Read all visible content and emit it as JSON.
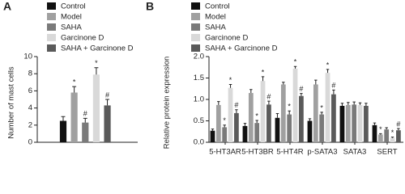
{
  "chart_data": [
    {
      "type": "bar",
      "panel_label": "A",
      "y_label": "Number of mast cells",
      "categories": [
        null
      ],
      "series": [
        {
          "name": "Control",
          "color": "#111111",
          "values": [
            2.5
          ],
          "errors": [
            0.5
          ],
          "markers": [
            null
          ]
        },
        {
          "name": "Model",
          "color": "#a0a0a0",
          "values": [
            5.8
          ],
          "errors": [
            0.7
          ],
          "markers": [
            "*"
          ]
        },
        {
          "name": "SAHA",
          "color": "#7a7a7a",
          "values": [
            2.3
          ],
          "errors": [
            0.5
          ],
          "markers": [
            "#"
          ]
        },
        {
          "name": "Garcinone D",
          "color": "#d9d9d9",
          "values": [
            7.9
          ],
          "errors": [
            0.8
          ],
          "markers": [
            "*"
          ]
        },
        {
          "name": "SAHA + Garcinone D",
          "color": "#5a5a5a",
          "values": [
            4.3
          ],
          "errors": [
            0.7
          ],
          "markers": [
            "#"
          ]
        }
      ],
      "ylim": [
        0,
        10
      ],
      "yticks": [
        0,
        2,
        4,
        6,
        8,
        10
      ]
    },
    {
      "type": "bar",
      "panel_label": "B",
      "y_label": "Relative protein expression",
      "categories": [
        "5-HT3AR",
        "5-HT3BR",
        "5-HT4R",
        "p-SATA3",
        "SATA3",
        "SERT"
      ],
      "series": [
        {
          "name": "Control",
          "color": "#111111",
          "values": [
            0.27,
            0.38,
            0.57,
            0.5,
            0.85,
            0.4
          ],
          "errors": [
            0.04,
            0.06,
            0.1,
            0.05,
            0.06,
            0.05
          ],
          "markers": [
            null,
            null,
            null,
            null,
            null,
            null
          ]
        },
        {
          "name": "Model",
          "color": "#a0a0a0",
          "values": [
            0.87,
            1.15,
            1.35,
            1.35,
            0.87,
            0.18
          ],
          "errors": [
            0.08,
            0.08,
            0.05,
            0.1,
            0.06,
            0.02
          ],
          "markers": [
            null,
            null,
            null,
            null,
            null,
            "*"
          ]
        },
        {
          "name": "SAHA",
          "color": "#7a7a7a",
          "values": [
            0.35,
            0.45,
            0.65,
            0.65,
            0.88,
            0.3
          ],
          "errors": [
            0.05,
            0.06,
            0.08,
            0.05,
            0.06,
            0.04
          ],
          "markers": [
            "*",
            "*",
            "*",
            "*",
            null,
            null
          ]
        },
        {
          "name": "Garcinone D",
          "color": "#d9d9d9",
          "values": [
            1.27,
            1.43,
            1.72,
            1.62,
            0.87,
            0.1
          ],
          "errors": [
            0.08,
            0.1,
            0.05,
            0.08,
            0.05,
            0.02
          ],
          "markers": [
            "*",
            "*",
            "*",
            "*",
            null,
            "*"
          ]
        },
        {
          "name": "SAHA + Garcinone D",
          "color": "#5a5a5a",
          "values": [
            0.68,
            0.88,
            1.08,
            1.12,
            0.85,
            0.28
          ],
          "errors": [
            0.08,
            0.08,
            0.06,
            0.1,
            0.06,
            0.04
          ],
          "markers": [
            "#",
            "#",
            "#",
            "#",
            null,
            "#"
          ]
        }
      ],
      "ylim": [
        0,
        2
      ],
      "yticks": [
        {
          "value": 0,
          "label": "0.0"
        },
        {
          "value": 0.5,
          "label": "0.5"
        },
        {
          "value": 1,
          "label": "1.0"
        },
        {
          "value": 1.5,
          "label": "1.5"
        },
        {
          "value": 2,
          "label": "2.0"
        }
      ]
    }
  ]
}
